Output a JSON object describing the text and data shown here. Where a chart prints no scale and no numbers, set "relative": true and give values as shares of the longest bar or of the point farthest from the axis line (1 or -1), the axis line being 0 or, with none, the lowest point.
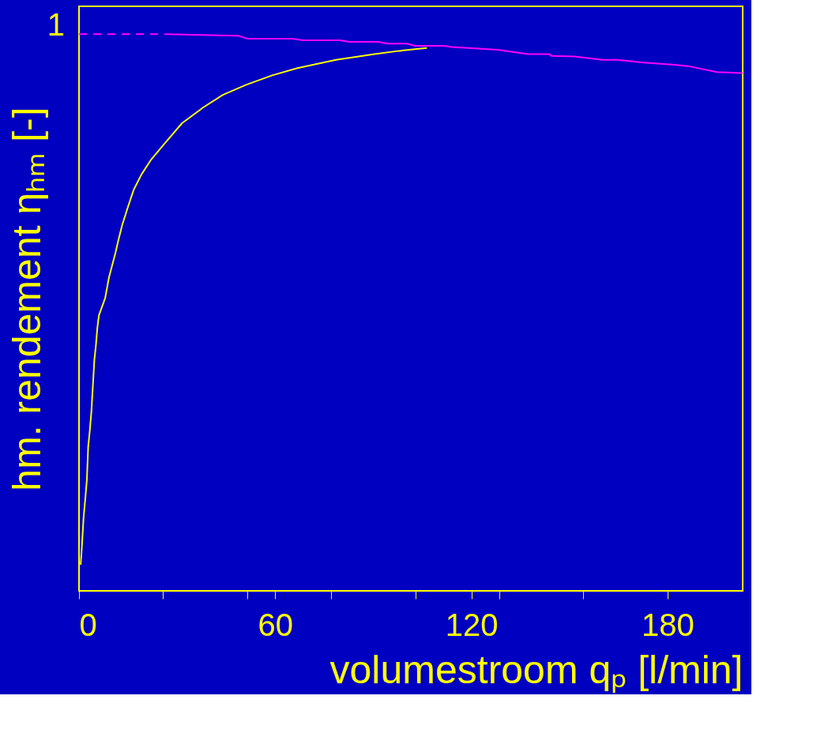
{
  "chart_data": {
    "type": "line",
    "relative": true,
    "xlabel": "volumestroom qₚ  [l/min]",
    "ylabel": "hm. rendement ηₕₘ [-]",
    "annotations": [
      "1"
    ],
    "xlim": [
      0,
      203
    ],
    "xticks": [
      0,
      {
        "value": 25.7,
        "label": null
      },
      {
        "value": 51.4,
        "label": null
      },
      60,
      {
        "value": 77.1,
        "label": null
      },
      {
        "value": 102.9,
        "label": null
      },
      120,
      {
        "value": 128.6,
        "label": null
      },
      {
        "value": 154.3,
        "label": null
      },
      180
    ],
    "grid": false,
    "marker": "none",
    "series": [
      {
        "color": "#ff00ff",
        "line_style": "dashed",
        "x": [
          0,
          26.4
        ],
        "values": [
          1.0,
          1.0
        ]
      },
      {
        "color": "#ff00ff",
        "line_style": "solid",
        "x": [
          26.4,
          48.7,
          51.5,
          64.9,
          68.5,
          79.8,
          82.6,
          91.5,
          94.4,
          100.2,
          102.8,
          111.5,
          113.9,
          119.1,
          128.0,
          137.4,
          143.8,
          144.5,
          151.5,
          160.0,
          164.5,
          172.7,
          182.1,
          186.8,
          195.1,
          203
        ],
        "values": [
          1.0,
          0.997,
          0.992,
          0.992,
          0.989,
          0.989,
          0.986,
          0.986,
          0.983,
          0.983,
          0.979,
          0.979,
          0.977,
          0.975,
          0.972,
          0.964,
          0.964,
          0.961,
          0.96,
          0.954,
          0.954,
          0.949,
          0.945,
          0.942,
          0.932,
          0.93
        ]
      },
      {
        "color": "#ffff00",
        "line_style": "solid",
        "x": [
          0.5,
          0.9,
          1.4,
          1.9,
          2.4,
          2.8,
          3.3,
          3.8,
          4.2,
          4.7,
          5.2,
          5.6,
          6.1,
          8.0,
          9.2,
          11.1,
          12.0,
          13.2,
          15.1,
          16.7,
          19.1,
          22.1,
          26.1,
          31.5,
          37.9,
          44.0,
          51.1,
          59.1,
          66.8,
          78.6,
          90.4,
          97.9,
          106.4
        ],
        "values": [
          0.047,
          0.081,
          0.132,
          0.164,
          0.199,
          0.258,
          0.288,
          0.323,
          0.364,
          0.415,
          0.443,
          0.472,
          0.495,
          0.526,
          0.564,
          0.606,
          0.629,
          0.657,
          0.692,
          0.72,
          0.748,
          0.775,
          0.803,
          0.84,
          0.868,
          0.891,
          0.909,
          0.926,
          0.939,
          0.954,
          0.964,
          0.97,
          0.975
        ]
      }
    ]
  }
}
